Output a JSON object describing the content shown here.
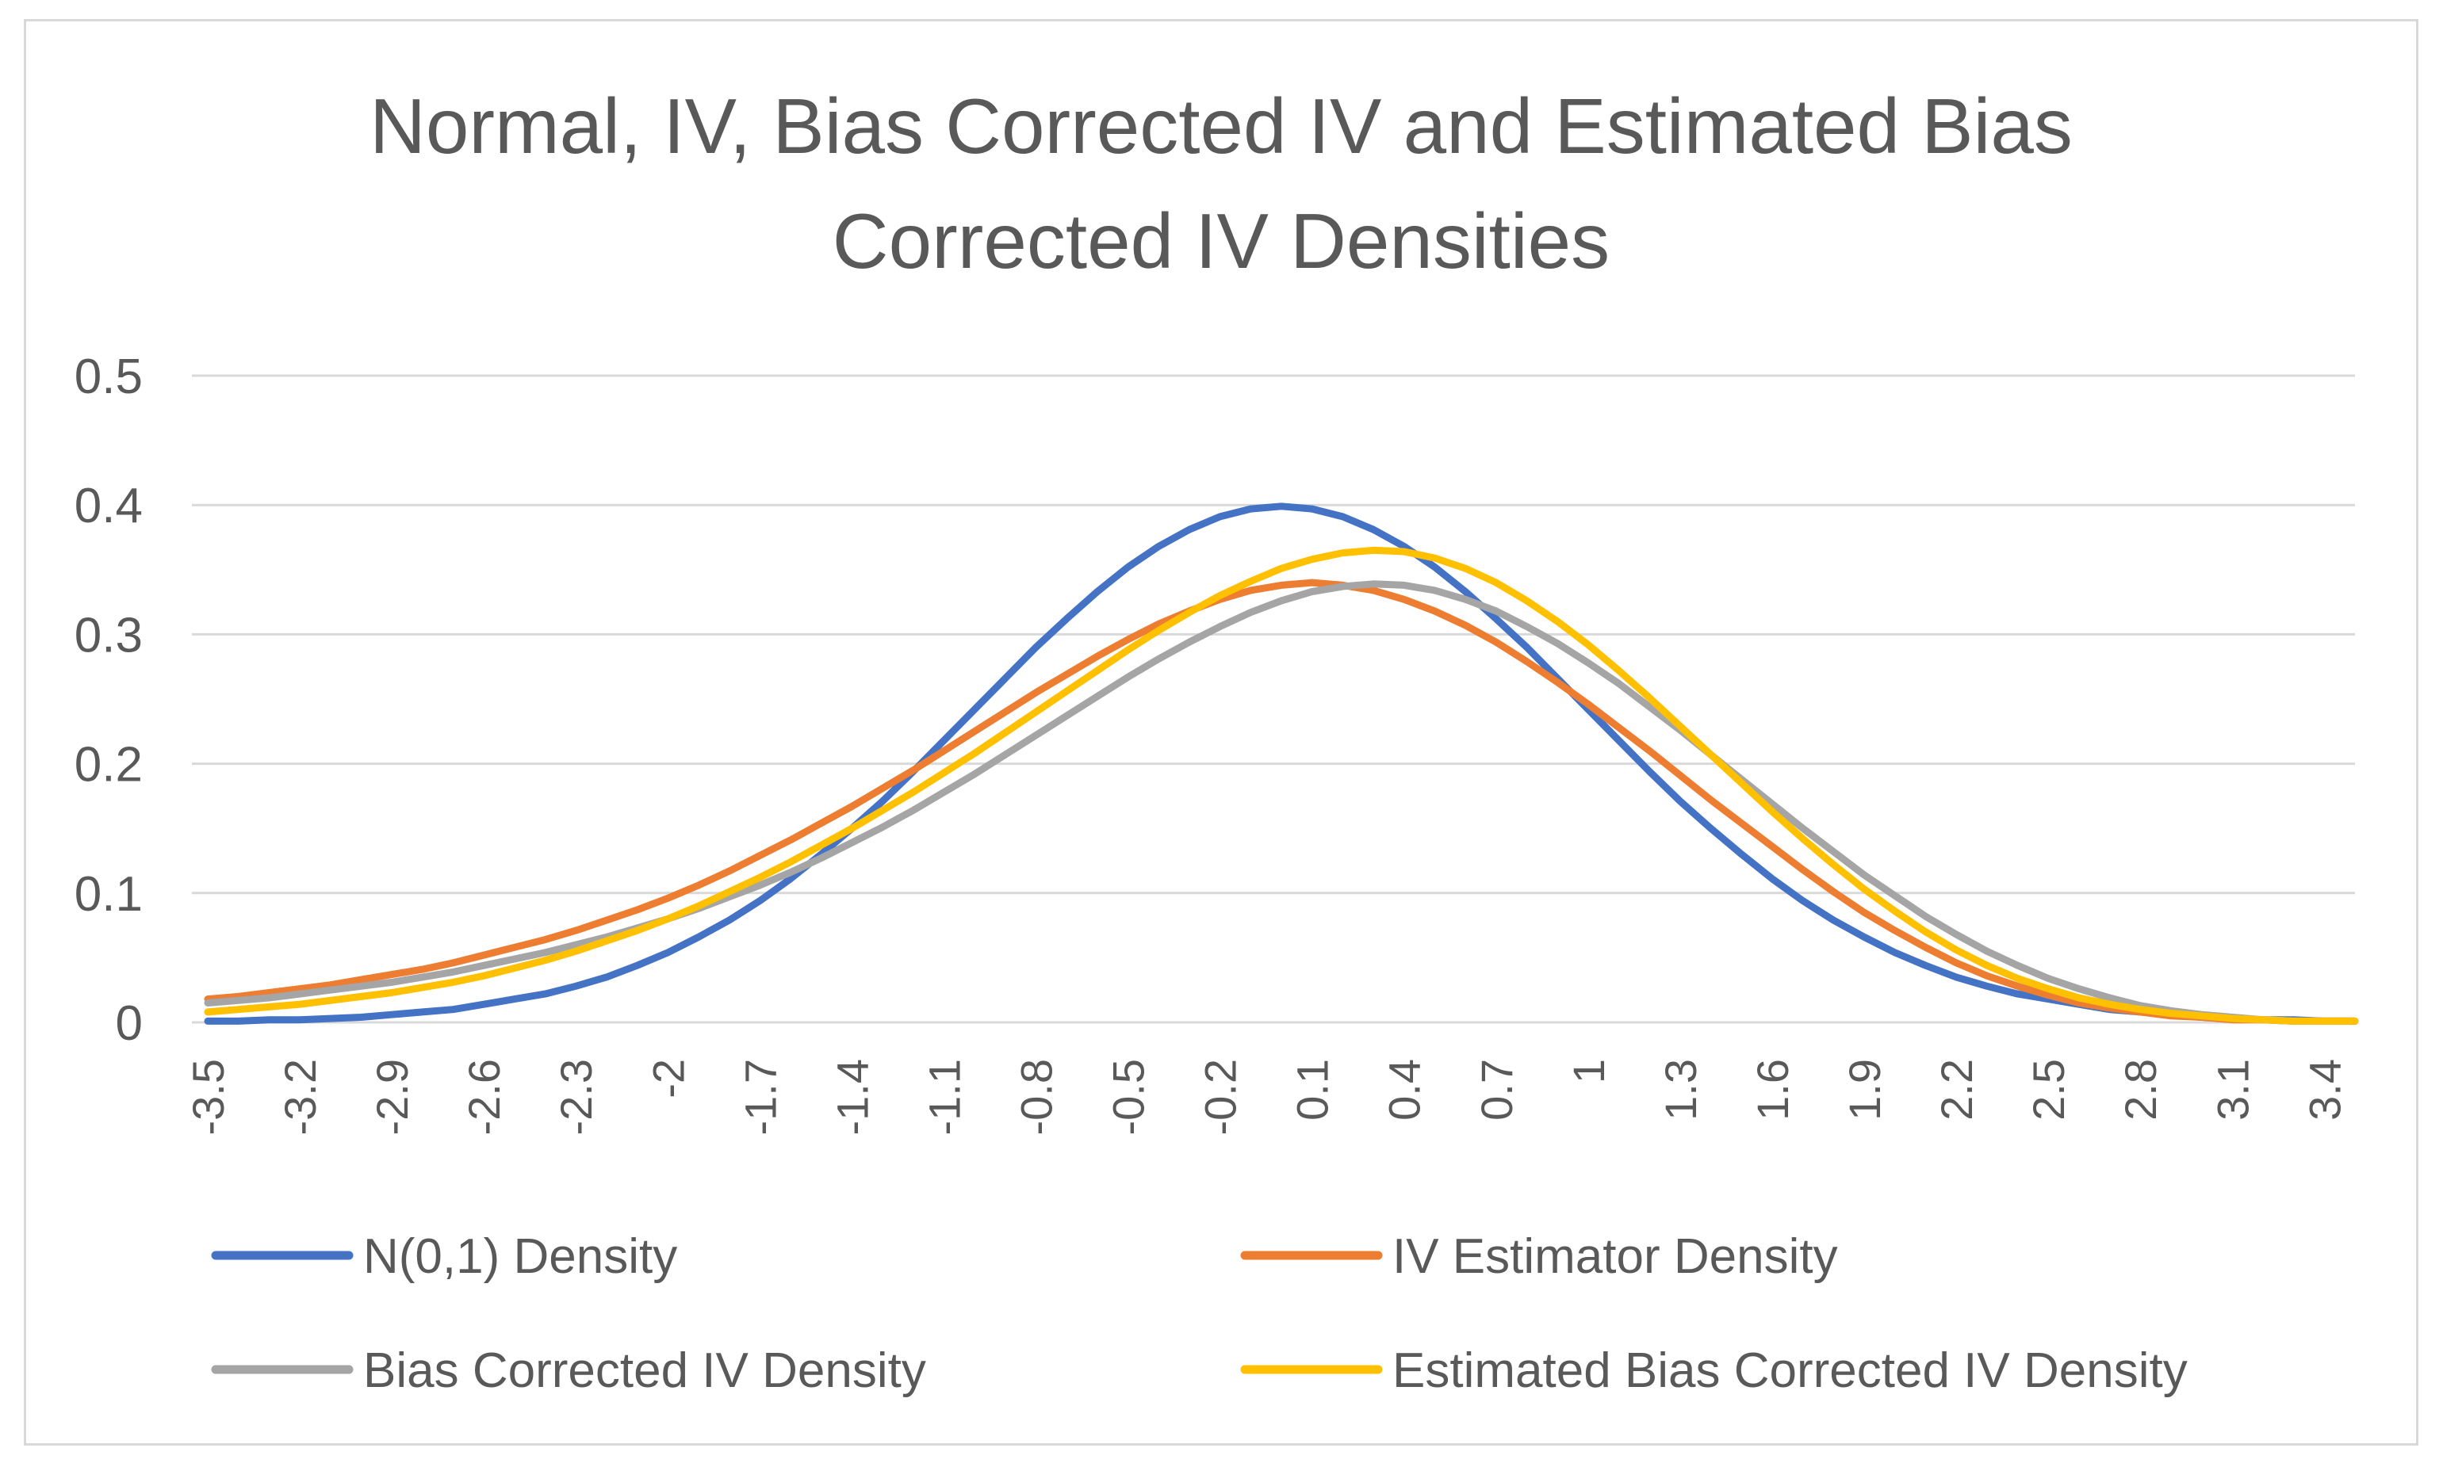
{
  "chart_data": {
    "type": "line",
    "title": "Normal, IV, Bias Corrected IV and Estimated Bias Corrected IV Densities",
    "title_lines": [
      "Normal, IV, Bias Corrected IV and Estimated Bias",
      "Corrected IV Densities"
    ],
    "xlabel": "",
    "ylabel": "",
    "ylim": [
      0,
      0.5
    ],
    "yticks": [
      0,
      0.1,
      0.2,
      0.3,
      0.4,
      0.5
    ],
    "ytick_labels": [
      "0",
      "0.1",
      "0.2",
      "0.3",
      "0.4",
      "0.5"
    ],
    "grid": true,
    "legend_position": "bottom",
    "x": [
      -3.5,
      -3.4,
      -3.3,
      -3.2,
      -3.1,
      -3.0,
      -2.9,
      -2.8,
      -2.7,
      -2.6,
      -2.5,
      -2.4,
      -2.3,
      -2.2,
      -2.1,
      -2.0,
      -1.9,
      -1.8,
      -1.7,
      -1.6,
      -1.5,
      -1.4,
      -1.3,
      -1.2,
      -1.1,
      -1.0,
      -0.9,
      -0.8,
      -0.7,
      -0.6,
      -0.5,
      -0.4,
      -0.3,
      -0.2,
      -0.1,
      0.0,
      0.1,
      0.2,
      0.3,
      0.4,
      0.5,
      0.6,
      0.7,
      0.8,
      0.9,
      1.0,
      1.1,
      1.2,
      1.3,
      1.4,
      1.5,
      1.6,
      1.7,
      1.8,
      1.9,
      2.0,
      2.1,
      2.2,
      2.3,
      2.4,
      2.5,
      2.6,
      2.7,
      2.8,
      2.9,
      3.0,
      3.1,
      3.2,
      3.3,
      3.4,
      3.5
    ],
    "xtick_labels": [
      "-3.5",
      "-3.2",
      "-2.9",
      "-2.6",
      "-2.3",
      "-2",
      "-1.7",
      "-1.4",
      "-1.1",
      "-0.8",
      "-0.5",
      "-0.2",
      "0.1",
      "0.4",
      "0.7",
      "1",
      "1.3",
      "1.6",
      "1.9",
      "2.2",
      "2.5",
      "2.8",
      "3.1",
      "3.4"
    ],
    "series": [
      {
        "name": "N(0,1) Density",
        "color": "#4472c4",
        "values": [
          0.001,
          0.001,
          0.002,
          0.002,
          0.003,
          0.004,
          0.006,
          0.008,
          0.01,
          0.014,
          0.018,
          0.022,
          0.028,
          0.035,
          0.044,
          0.054,
          0.066,
          0.079,
          0.094,
          0.111,
          0.13,
          0.15,
          0.171,
          0.194,
          0.218,
          0.242,
          0.266,
          0.29,
          0.312,
          0.333,
          0.352,
          0.368,
          0.381,
          0.391,
          0.397,
          0.399,
          0.397,
          0.391,
          0.381,
          0.368,
          0.352,
          0.333,
          0.312,
          0.29,
          0.266,
          0.242,
          0.218,
          0.194,
          0.171,
          0.15,
          0.13,
          0.111,
          0.094,
          0.079,
          0.066,
          0.054,
          0.044,
          0.035,
          0.028,
          0.022,
          0.018,
          0.014,
          0.01,
          0.008,
          0.006,
          0.004,
          0.003,
          0.002,
          0.002,
          0.001,
          0.001
        ]
      },
      {
        "name": "IV Estimator Density",
        "color": "#ed7d31",
        "values": [
          0.018,
          0.02,
          0.023,
          0.026,
          0.029,
          0.033,
          0.037,
          0.041,
          0.046,
          0.052,
          0.058,
          0.064,
          0.071,
          0.079,
          0.087,
          0.096,
          0.106,
          0.117,
          0.129,
          0.141,
          0.154,
          0.167,
          0.181,
          0.195,
          0.21,
          0.225,
          0.24,
          0.255,
          0.269,
          0.283,
          0.296,
          0.308,
          0.318,
          0.327,
          0.334,
          0.338,
          0.34,
          0.338,
          0.334,
          0.327,
          0.318,
          0.307,
          0.294,
          0.279,
          0.263,
          0.246,
          0.228,
          0.21,
          0.191,
          0.172,
          0.154,
          0.136,
          0.118,
          0.101,
          0.085,
          0.071,
          0.058,
          0.046,
          0.036,
          0.028,
          0.021,
          0.015,
          0.011,
          0.008,
          0.005,
          0.004,
          0.002,
          0.002,
          0.001,
          0.001,
          0.001
        ]
      },
      {
        "name": "Bias Corrected IV Density",
        "color": "#a5a5a5",
        "values": [
          0.015,
          0.017,
          0.019,
          0.022,
          0.025,
          0.028,
          0.031,
          0.035,
          0.039,
          0.044,
          0.049,
          0.054,
          0.06,
          0.066,
          0.073,
          0.08,
          0.088,
          0.097,
          0.106,
          0.116,
          0.127,
          0.139,
          0.151,
          0.164,
          0.178,
          0.192,
          0.207,
          0.222,
          0.237,
          0.252,
          0.267,
          0.281,
          0.294,
          0.306,
          0.317,
          0.326,
          0.333,
          0.337,
          0.339,
          0.338,
          0.334,
          0.327,
          0.318,
          0.306,
          0.293,
          0.278,
          0.262,
          0.244,
          0.226,
          0.207,
          0.188,
          0.169,
          0.15,
          0.132,
          0.114,
          0.098,
          0.082,
          0.068,
          0.055,
          0.044,
          0.034,
          0.026,
          0.019,
          0.013,
          0.009,
          0.006,
          0.004,
          0.002,
          0.001,
          0.001,
          0.001
        ]
      },
      {
        "name": "Estimated Bias Corrected IV Density",
        "color": "#ffc000",
        "values": [
          0.008,
          0.01,
          0.012,
          0.014,
          0.017,
          0.02,
          0.023,
          0.027,
          0.031,
          0.036,
          0.042,
          0.048,
          0.055,
          0.063,
          0.071,
          0.08,
          0.09,
          0.101,
          0.112,
          0.124,
          0.137,
          0.15,
          0.164,
          0.178,
          0.193,
          0.208,
          0.224,
          0.24,
          0.256,
          0.272,
          0.288,
          0.303,
          0.317,
          0.33,
          0.341,
          0.351,
          0.358,
          0.363,
          0.365,
          0.364,
          0.359,
          0.351,
          0.34,
          0.326,
          0.31,
          0.292,
          0.272,
          0.251,
          0.229,
          0.207,
          0.185,
          0.163,
          0.142,
          0.122,
          0.103,
          0.086,
          0.07,
          0.056,
          0.044,
          0.034,
          0.026,
          0.019,
          0.014,
          0.01,
          0.007,
          0.005,
          0.003,
          0.002,
          0.001,
          0.001,
          0.001
        ]
      }
    ]
  }
}
